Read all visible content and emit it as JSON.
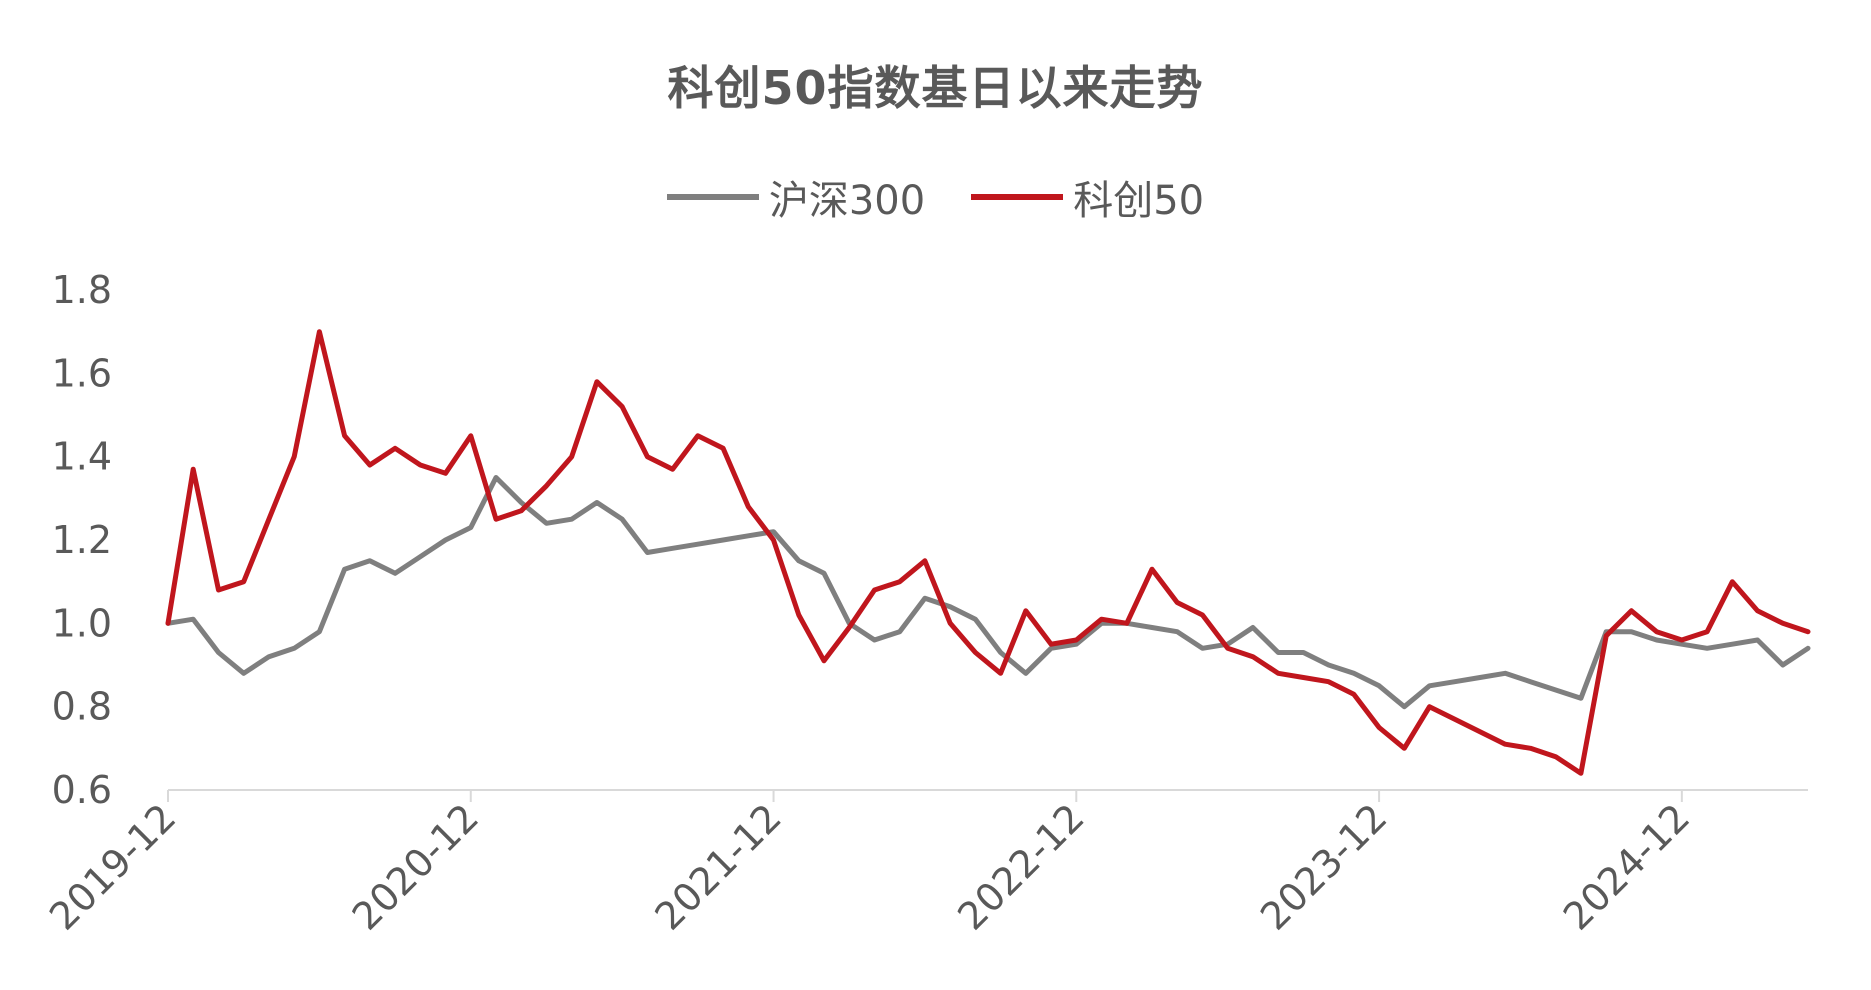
{
  "chart_data": {
    "type": "line",
    "title": "科创50指数基日以来走势",
    "xlabel": "",
    "ylabel": "",
    "ylim": [
      0.6,
      1.8
    ],
    "yticks": [
      "1.8",
      "1.6",
      "1.4",
      "1.2",
      "1.0",
      "0.8",
      "0.6"
    ],
    "xticks": [
      "2019-12",
      "2020-12",
      "2021-12",
      "2022-12",
      "2023-12",
      "2024-12"
    ],
    "x_range": [
      "2019-12",
      "2025-05"
    ],
    "grid": false,
    "legend_position": "top-center",
    "x": [
      "2019-12",
      "2020-01",
      "2020-02",
      "2020-03",
      "2020-04",
      "2020-05",
      "2020-06",
      "2020-07",
      "2020-08",
      "2020-09",
      "2020-10",
      "2020-11",
      "2020-12",
      "2021-01",
      "2021-02",
      "2021-03",
      "2021-04",
      "2021-05",
      "2021-06",
      "2021-07",
      "2021-08",
      "2021-09",
      "2021-10",
      "2021-11",
      "2021-12",
      "2022-01",
      "2022-02",
      "2022-03",
      "2022-04",
      "2022-05",
      "2022-06",
      "2022-07",
      "2022-08",
      "2022-09",
      "2022-10",
      "2022-11",
      "2022-12",
      "2023-01",
      "2023-02",
      "2023-03",
      "2023-04",
      "2023-05",
      "2023-06",
      "2023-07",
      "2023-08",
      "2023-09",
      "2023-10",
      "2023-11",
      "2023-12",
      "2024-01",
      "2024-02",
      "2024-03",
      "2024-04",
      "2024-05",
      "2024-06",
      "2024-07",
      "2024-08",
      "2024-09",
      "2024-10",
      "2024-11",
      "2024-12",
      "2025-01",
      "2025-02",
      "2025-03",
      "2025-04",
      "2025-05"
    ],
    "series": [
      {
        "name": "沪深300",
        "color": "#7f7f7f",
        "values": [
          1.0,
          1.01,
          0.93,
          0.88,
          0.92,
          0.94,
          0.98,
          1.13,
          1.15,
          1.12,
          1.16,
          1.2,
          1.23,
          1.35,
          1.29,
          1.24,
          1.25,
          1.29,
          1.25,
          1.17,
          1.18,
          1.19,
          1.2,
          1.21,
          1.22,
          1.15,
          1.12,
          1.0,
          0.96,
          0.98,
          1.06,
          1.04,
          1.01,
          0.93,
          0.88,
          0.94,
          0.95,
          1.0,
          1.0,
          0.99,
          0.98,
          0.94,
          0.95,
          0.99,
          0.93,
          0.93,
          0.9,
          0.88,
          0.85,
          0.8,
          0.85,
          0.86,
          0.87,
          0.88,
          0.86,
          0.84,
          0.82,
          0.98,
          0.98,
          0.96,
          0.95,
          0.94,
          0.95,
          0.96,
          0.9,
          0.94
        ]
      },
      {
        "name": "科创50",
        "color": "#c0161d",
        "values": [
          1.0,
          1.37,
          1.08,
          1.1,
          1.25,
          1.4,
          1.7,
          1.45,
          1.38,
          1.42,
          1.38,
          1.36,
          1.45,
          1.25,
          1.27,
          1.33,
          1.4,
          1.58,
          1.52,
          1.4,
          1.37,
          1.45,
          1.42,
          1.28,
          1.2,
          1.02,
          0.91,
          0.99,
          1.08,
          1.1,
          1.15,
          1.0,
          0.93,
          0.88,
          1.03,
          0.95,
          0.96,
          1.01,
          1.0,
          1.13,
          1.05,
          1.02,
          0.94,
          0.92,
          0.88,
          0.87,
          0.86,
          0.83,
          0.75,
          0.7,
          0.8,
          0.77,
          0.74,
          0.71,
          0.7,
          0.68,
          0.64,
          0.97,
          1.03,
          0.98,
          0.96,
          0.98,
          1.1,
          1.03,
          1.0,
          0.98
        ]
      }
    ]
  },
  "legend": {
    "items": [
      {
        "label": "沪深300",
        "color": "#7f7f7f"
      },
      {
        "label": "科创50",
        "color": "#c0161d"
      }
    ]
  },
  "colors": {
    "axis": "#d9d9d9",
    "text": "#595959"
  }
}
